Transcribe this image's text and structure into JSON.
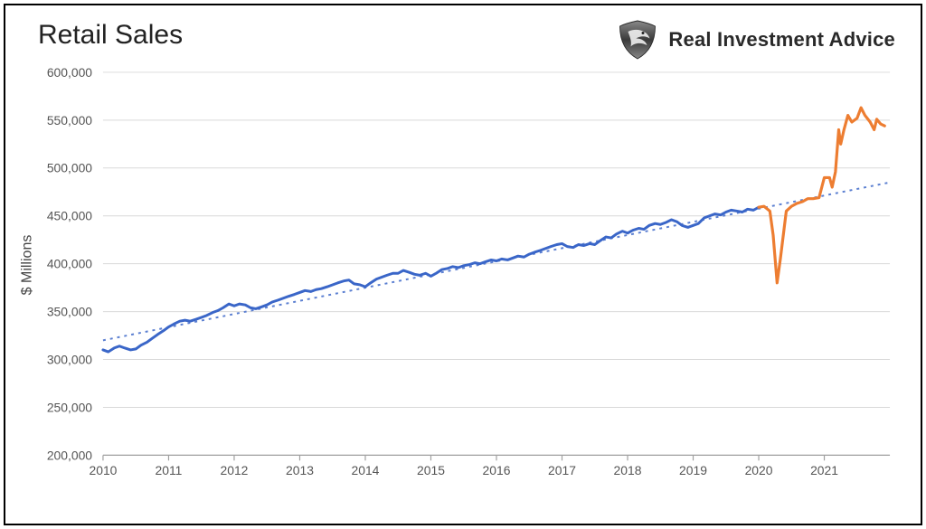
{
  "chart": {
    "type": "line",
    "title": "Retail Sales",
    "brand_text": "Real Investment Advice",
    "y_axis_label": "$ Millions",
    "x_axis_label": "",
    "background_color": "#ffffff",
    "border_color": "#000000",
    "grid_color": "#d9d9d9",
    "axis_color": "#a0a0a0",
    "text_color": "#555555",
    "title_fontsize": 30,
    "axis_label_fontsize": 16,
    "tick_fontsize": 14,
    "x": {
      "min": 2010,
      "max": 2022,
      "ticks": [
        2010,
        2011,
        2012,
        2013,
        2014,
        2015,
        2016,
        2017,
        2018,
        2019,
        2020,
        2021
      ],
      "tick_labels": [
        "2010",
        "2011",
        "2012",
        "2013",
        "2014",
        "2015",
        "2016",
        "2017",
        "2018",
        "2019",
        "2020",
        "2021"
      ],
      "grid": false
    },
    "y": {
      "min": 200000,
      "max": 600000,
      "ticks": [
        200000,
        250000,
        300000,
        350000,
        400000,
        450000,
        500000,
        550000,
        600000
      ],
      "tick_labels": [
        "200,000",
        "250,000",
        "300,000",
        "350,000",
        "400,000",
        "450,000",
        "500,000",
        "550,000",
        "600,000"
      ],
      "grid": true
    },
    "series": [
      {
        "name": "retail_sales_pre2020",
        "color": "#3a66c8",
        "line_width": 3.0,
        "points": [
          [
            2010.0,
            310000
          ],
          [
            2010.08,
            308000
          ],
          [
            2010.17,
            312000
          ],
          [
            2010.25,
            314000
          ],
          [
            2010.33,
            312000
          ],
          [
            2010.42,
            310000
          ],
          [
            2010.5,
            311000
          ],
          [
            2010.58,
            315000
          ],
          [
            2010.67,
            318000
          ],
          [
            2010.75,
            322000
          ],
          [
            2010.83,
            326000
          ],
          [
            2010.92,
            330000
          ],
          [
            2011.0,
            334000
          ],
          [
            2011.08,
            337000
          ],
          [
            2011.17,
            340000
          ],
          [
            2011.25,
            341000
          ],
          [
            2011.33,
            340000
          ],
          [
            2011.42,
            342000
          ],
          [
            2011.5,
            344000
          ],
          [
            2011.58,
            346000
          ],
          [
            2011.67,
            349000
          ],
          [
            2011.75,
            351000
          ],
          [
            2011.83,
            354000
          ],
          [
            2011.92,
            358000
          ],
          [
            2012.0,
            356000
          ],
          [
            2012.08,
            358000
          ],
          [
            2012.17,
            357000
          ],
          [
            2012.25,
            354000
          ],
          [
            2012.33,
            353000
          ],
          [
            2012.42,
            355000
          ],
          [
            2012.5,
            357000
          ],
          [
            2012.58,
            360000
          ],
          [
            2012.67,
            362000
          ],
          [
            2012.75,
            364000
          ],
          [
            2012.83,
            366000
          ],
          [
            2012.92,
            368000
          ],
          [
            2013.0,
            370000
          ],
          [
            2013.08,
            372000
          ],
          [
            2013.17,
            371000
          ],
          [
            2013.25,
            373000
          ],
          [
            2013.33,
            374000
          ],
          [
            2013.42,
            376000
          ],
          [
            2013.5,
            378000
          ],
          [
            2013.58,
            380000
          ],
          [
            2013.67,
            382000
          ],
          [
            2013.75,
            383000
          ],
          [
            2013.83,
            379000
          ],
          [
            2013.92,
            378000
          ],
          [
            2014.0,
            376000
          ],
          [
            2014.08,
            380000
          ],
          [
            2014.17,
            384000
          ],
          [
            2014.25,
            386000
          ],
          [
            2014.33,
            388000
          ],
          [
            2014.42,
            390000
          ],
          [
            2014.5,
            390000
          ],
          [
            2014.58,
            393000
          ],
          [
            2014.67,
            391000
          ],
          [
            2014.75,
            389000
          ],
          [
            2014.83,
            388000
          ],
          [
            2014.92,
            390000
          ],
          [
            2015.0,
            387000
          ],
          [
            2015.08,
            390000
          ],
          [
            2015.17,
            394000
          ],
          [
            2015.25,
            395000
          ],
          [
            2015.33,
            397000
          ],
          [
            2015.42,
            396000
          ],
          [
            2015.5,
            398000
          ],
          [
            2015.58,
            399000
          ],
          [
            2015.67,
            401000
          ],
          [
            2015.75,
            400000
          ],
          [
            2015.83,
            402000
          ],
          [
            2015.92,
            404000
          ],
          [
            2016.0,
            403000
          ],
          [
            2016.08,
            405000
          ],
          [
            2016.17,
            404000
          ],
          [
            2016.25,
            406000
          ],
          [
            2016.33,
            408000
          ],
          [
            2016.42,
            407000
          ],
          [
            2016.5,
            410000
          ],
          [
            2016.58,
            412000
          ],
          [
            2016.67,
            414000
          ],
          [
            2016.75,
            416000
          ],
          [
            2016.83,
            418000
          ],
          [
            2016.92,
            420000
          ],
          [
            2017.0,
            421000
          ],
          [
            2017.08,
            418000
          ],
          [
            2017.17,
            417000
          ],
          [
            2017.25,
            420000
          ],
          [
            2017.33,
            419000
          ],
          [
            2017.42,
            421000
          ],
          [
            2017.5,
            420000
          ],
          [
            2017.58,
            424000
          ],
          [
            2017.67,
            428000
          ],
          [
            2017.75,
            427000
          ],
          [
            2017.83,
            431000
          ],
          [
            2017.92,
            434000
          ],
          [
            2018.0,
            432000
          ],
          [
            2018.08,
            435000
          ],
          [
            2018.17,
            437000
          ],
          [
            2018.25,
            436000
          ],
          [
            2018.33,
            440000
          ],
          [
            2018.42,
            442000
          ],
          [
            2018.5,
            441000
          ],
          [
            2018.58,
            443000
          ],
          [
            2018.67,
            446000
          ],
          [
            2018.75,
            444000
          ],
          [
            2018.83,
            440000
          ],
          [
            2018.92,
            438000
          ],
          [
            2019.0,
            440000
          ],
          [
            2019.08,
            442000
          ],
          [
            2019.17,
            448000
          ],
          [
            2019.25,
            450000
          ],
          [
            2019.33,
            452000
          ],
          [
            2019.42,
            451000
          ],
          [
            2019.5,
            454000
          ],
          [
            2019.58,
            456000
          ],
          [
            2019.67,
            455000
          ],
          [
            2019.75,
            454000
          ],
          [
            2019.83,
            457000
          ],
          [
            2019.92,
            456000
          ],
          [
            2020.0,
            459000
          ]
        ]
      },
      {
        "name": "retail_sales_post2020",
        "color": "#ed7d31",
        "line_width": 3.2,
        "points": [
          [
            2020.0,
            459000
          ],
          [
            2020.08,
            460000
          ],
          [
            2020.17,
            455000
          ],
          [
            2020.22,
            430000
          ],
          [
            2020.28,
            380000
          ],
          [
            2020.33,
            405000
          ],
          [
            2020.42,
            455000
          ],
          [
            2020.5,
            460000
          ],
          [
            2020.58,
            463000
          ],
          [
            2020.67,
            465000
          ],
          [
            2020.75,
            468000
          ],
          [
            2020.83,
            468000
          ],
          [
            2020.92,
            469000
          ],
          [
            2021.0,
            490000
          ],
          [
            2021.08,
            490000
          ],
          [
            2021.12,
            480000
          ],
          [
            2021.17,
            496000
          ],
          [
            2021.22,
            540000
          ],
          [
            2021.25,
            525000
          ],
          [
            2021.3,
            540000
          ],
          [
            2021.36,
            555000
          ],
          [
            2021.42,
            548000
          ],
          [
            2021.5,
            552000
          ],
          [
            2021.56,
            563000
          ],
          [
            2021.62,
            555000
          ],
          [
            2021.7,
            548000
          ],
          [
            2021.76,
            540000
          ],
          [
            2021.8,
            551000
          ],
          [
            2021.86,
            546000
          ],
          [
            2021.92,
            544000
          ]
        ]
      }
    ],
    "trendline": {
      "color": "#5b7fd1",
      "line_width": 2.0,
      "dash": "3,5",
      "start": [
        2010.0,
        320000
      ],
      "end": [
        2022.0,
        485000
      ]
    }
  }
}
